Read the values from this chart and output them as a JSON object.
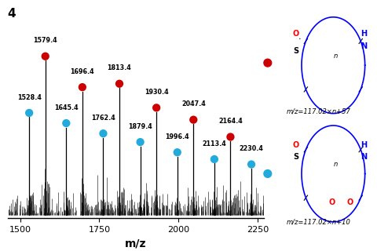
{
  "title": "4",
  "xlabel": "m/z",
  "xlim": [
    1460,
    2270
  ],
  "xticks": [
    1500,
    1750,
    2000,
    2250
  ],
  "red_peaks": [
    1579.4,
    1696.4,
    1813.4,
    1930.4,
    2047.4,
    2164.4
  ],
  "cyan_peaks": [
    1528.4,
    1645.4,
    1762.4,
    1879.4,
    1996.4,
    2113.4,
    2230.4
  ],
  "red_heights": [
    0.9,
    0.72,
    0.74,
    0.6,
    0.53,
    0.43
  ],
  "cyan_heights": [
    0.57,
    0.51,
    0.45,
    0.4,
    0.34,
    0.3,
    0.27
  ],
  "background_color": "#ffffff",
  "red_dot_color": "#cc0000",
  "cyan_dot_color": "#22aadd",
  "dot_size": 55,
  "formula_text_red": "m/z=117.02×n+57",
  "formula_text_cyan": "m/z=117.02×n+10"
}
